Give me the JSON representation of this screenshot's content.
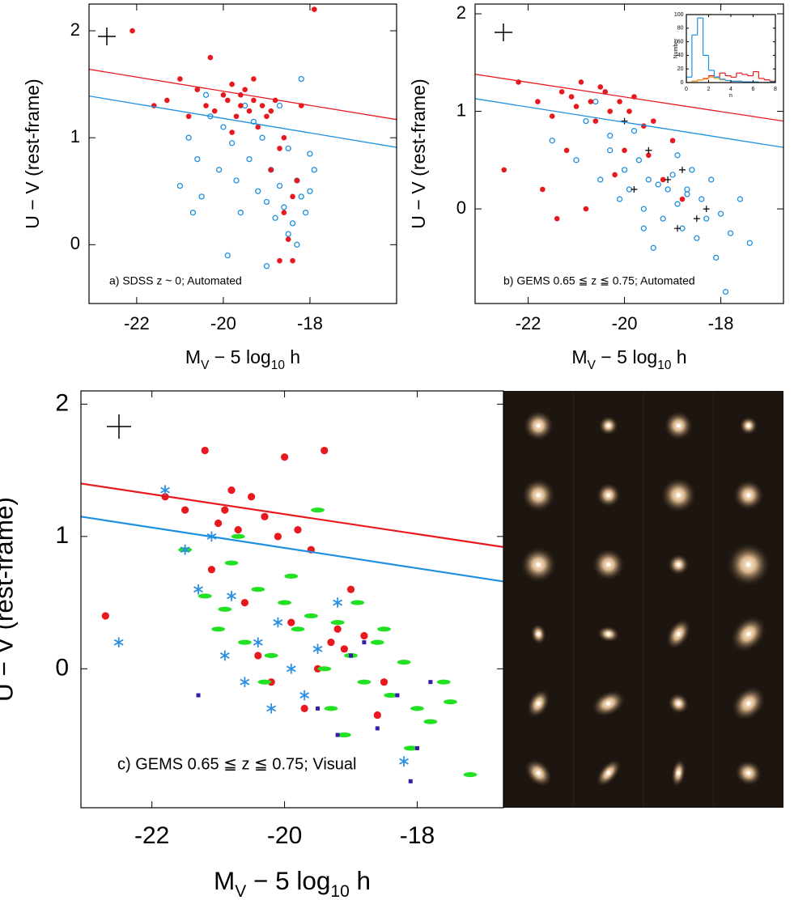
{
  "chart_data": [
    {
      "type": "scatter",
      "ylabel": "U − V (rest-frame)",
      "xlabel": [
        {
          "text": "M"
        },
        {
          "text": "V",
          "sub": true
        },
        {
          "text": " − 5 log"
        },
        {
          "text": "10",
          "sub": true
        },
        {
          "text": " h"
        }
      ],
      "annotation": "a) SDSS z ~ 0; Automated",
      "xlim": [
        -23.1,
        -16.0
      ],
      "ylim": [
        -0.55,
        2.25
      ],
      "xticks": [
        -22,
        -20,
        -18
      ],
      "yticks": [
        0,
        1,
        2
      ],
      "lines": [
        {
          "color": "#e8191e",
          "x": [
            -23.1,
            -16.0
          ],
          "values": [
            1.64,
            1.17
          ]
        },
        {
          "color": "#1e90e0",
          "x": [
            -23.1,
            -16.0
          ],
          "values": [
            1.39,
            0.91
          ]
        }
      ],
      "series": [
        {
          "color": "#1e90e0",
          "marker": "circle-open",
          "x": [
            -21.0,
            -20.8,
            -20.6,
            -20.5,
            -20.3,
            -20.1,
            -20.0,
            -19.8,
            -19.7,
            -19.5,
            -19.4,
            -19.2,
            -19.1,
            -19.0,
            -18.9,
            -18.8,
            -18.7,
            -18.6,
            -18.5,
            -18.4,
            -18.3,
            -18.2,
            -18.1,
            -18.0,
            -17.9,
            -18.3,
            -18.7,
            -19.3,
            -19.9,
            -20.4,
            -18.5,
            -18.2,
            -19.6,
            -18.0,
            -19.0,
            -20.7
          ],
          "values": [
            0.55,
            1.0,
            0.8,
            0.45,
            1.2,
            0.7,
            1.1,
            0.95,
            0.6,
            1.3,
            0.8,
            0.5,
            1.0,
            0.4,
            0.7,
            0.25,
            0.55,
            0.35,
            0.9,
            0.2,
            0.6,
            0.45,
            0.3,
            0.5,
            0.7,
            0.0,
            1.3,
            1.15,
            -0.1,
            1.4,
            0.1,
            1.55,
            0.3,
            0.85,
            -0.2,
            0.3
          ]
        },
        {
          "color": "#e8191e",
          "marker": "circle-filled",
          "x": [
            -22.1,
            -21.6,
            -21.3,
            -21.0,
            -20.8,
            -20.6,
            -20.4,
            -20.2,
            -20.0,
            -19.9,
            -19.8,
            -19.7,
            -19.6,
            -19.5,
            -19.4,
            -19.3,
            -19.2,
            -19.1,
            -19.0,
            -18.9,
            -18.8,
            -18.7,
            -18.6,
            -18.5,
            -18.4,
            -18.3,
            -18.2,
            -18.6,
            -18.9,
            -19.3,
            -19.8,
            -20.3,
            -18.7,
            -18.4,
            -19.6,
            -17.9
          ],
          "values": [
            2.0,
            1.3,
            1.35,
            1.55,
            1.2,
            1.45,
            1.3,
            1.25,
            1.4,
            1.35,
            1.5,
            1.2,
            1.3,
            1.45,
            1.25,
            1.35,
            1.1,
            1.3,
            1.2,
            1.25,
            1.35,
            0.9,
            1.0,
            0.05,
            -0.15,
            0.6,
            1.3,
            0.3,
            0.7,
            1.55,
            1.05,
            1.75,
            -0.15,
            0.45,
            1.4,
            2.2
          ]
        }
      ]
    },
    {
      "type": "scatter",
      "ylabel": "U − V (rest-frame)",
      "xlabel": [
        {
          "text": "M"
        },
        {
          "text": "V",
          "sub": true
        },
        {
          "text": " − 5 log"
        },
        {
          "text": "10",
          "sub": true
        },
        {
          "text": " h"
        }
      ],
      "annotation": "b) GEMS 0.65 ≦ z ≦ 0.75; Automated",
      "xlim": [
        -23.1,
        -16.7
      ],
      "ylim": [
        -0.97,
        2.1
      ],
      "xticks": [
        -22,
        -20,
        -18
      ],
      "yticks": [
        0,
        1,
        2
      ],
      "lines": [
        {
          "color": "#e8191e",
          "x": [
            -23.1,
            -16.7
          ],
          "values": [
            1.38,
            0.9
          ]
        },
        {
          "color": "#1e90e0",
          "x": [
            -23.1,
            -16.7
          ],
          "values": [
            1.13,
            0.63
          ]
        }
      ],
      "series": [
        {
          "color": "#1e90e0",
          "marker": "circle-open",
          "x": [
            -21.5,
            -21.0,
            -20.8,
            -20.5,
            -20.3,
            -20.1,
            -20.0,
            -19.9,
            -19.7,
            -19.6,
            -19.5,
            -19.3,
            -19.2,
            -19.1,
            -19.0,
            -18.9,
            -18.8,
            -18.7,
            -18.6,
            -18.5,
            -18.4,
            -18.3,
            -18.2,
            -18.0,
            -17.8,
            -17.6,
            -17.4,
            -19.8,
            -19.4,
            -20.6,
            -18.9,
            -18.1,
            -19.6,
            -20.3,
            -18.7,
            -17.9
          ],
          "values": [
            0.7,
            0.5,
            0.9,
            0.3,
            0.6,
            0.1,
            0.4,
            0.2,
            0.5,
            0.0,
            0.3,
            0.25,
            -0.1,
            0.2,
            0.35,
            0.05,
            -0.2,
            0.15,
            0.4,
            -0.3,
            0.1,
            -0.1,
            0.3,
            -0.05,
            -0.25,
            0.1,
            -0.35,
            0.8,
            -0.4,
            1.1,
            0.55,
            -0.5,
            -0.2,
            0.75,
            0.2,
            -0.85
          ]
        },
        {
          "color": "#e8191e",
          "marker": "circle-filled",
          "x": [
            -22.5,
            -22.2,
            -21.8,
            -21.5,
            -21.3,
            -21.1,
            -21.0,
            -20.9,
            -20.7,
            -20.6,
            -20.4,
            -20.3,
            -20.1,
            -20.0,
            -19.8,
            -19.6,
            -19.4,
            -19.2,
            -19.0,
            -18.8,
            -21.7,
            -21.2,
            -20.8,
            -20.2,
            -19.9,
            -20.5,
            -21.4,
            -19.5
          ],
          "values": [
            0.4,
            1.3,
            1.1,
            0.95,
            1.2,
            1.15,
            1.05,
            1.3,
            1.1,
            0.9,
            1.2,
            1.0,
            1.1,
            0.6,
            1.15,
            0.85,
            0.9,
            0.3,
            0.7,
            0.1,
            0.2,
            0.6,
            0.0,
            0.35,
            1.0,
            1.25,
            -0.1,
            0.55
          ]
        },
        {
          "color": "#000000",
          "marker": "plus",
          "x": [
            -20.0,
            -19.5,
            -19.1,
            -18.8,
            -18.5,
            -19.8,
            -18.9,
            -18.3
          ],
          "values": [
            0.9,
            0.6,
            0.3,
            0.4,
            -0.1,
            0.2,
            -0.2,
            0.0
          ]
        }
      ]
    },
    {
      "type": "histogram",
      "xlabel": "n",
      "ylabel": "Number",
      "xlim": [
        0,
        8
      ],
      "ylim": [
        0,
        100
      ],
      "xticks": [
        0,
        2,
        4,
        6,
        8
      ],
      "yticks": [
        0,
        20,
        40,
        60,
        80,
        100
      ],
      "bins": [
        0,
        0.5,
        1,
        1.5,
        2,
        2.5,
        3,
        3.5,
        4,
        4.5,
        5,
        5.5,
        6,
        6.5,
        7,
        7.5,
        8
      ],
      "series": [
        {
          "color": "#e8191e",
          "values": [
            0,
            2,
            4,
            6,
            10,
            8,
            14,
            10,
            8,
            14,
            12,
            10,
            16,
            6,
            4,
            2
          ]
        },
        {
          "color": "#f0a020",
          "values": [
            0,
            2,
            4,
            5,
            8,
            6,
            4,
            3,
            2,
            2,
            1,
            1,
            0,
            0,
            0,
            0
          ]
        },
        {
          "color": "#1e90e0",
          "values": [
            8,
            70,
            95,
            40,
            18,
            8,
            5,
            3,
            2,
            2,
            1,
            1,
            1,
            0,
            0,
            1
          ]
        }
      ]
    },
    {
      "type": "scatter",
      "ylabel": "U − V (rest-frame)",
      "xlabel": [
        {
          "text": "M"
        },
        {
          "text": "V",
          "sub": true
        },
        {
          "text": " − 5 log"
        },
        {
          "text": "10",
          "sub": true
        },
        {
          "text": " h"
        }
      ],
      "annotation": "c) GEMS 0.65 ≦ z ≦ 0.75; Visual",
      "xlim": [
        -23.07,
        -16.7
      ],
      "ylim": [
        -1.05,
        2.1
      ],
      "xticks": [
        -22,
        -20,
        -18
      ],
      "yticks": [
        0,
        1,
        2
      ],
      "lines": [
        {
          "color": "#e8191e",
          "x": [
            -23.07,
            -16.7
          ],
          "values": [
            1.4,
            0.92
          ]
        },
        {
          "color": "#1e90e0",
          "x": [
            -23.07,
            -16.7
          ],
          "values": [
            1.15,
            0.66
          ]
        }
      ],
      "series": [
        {
          "color": "#e8191e",
          "marker": "circle-filled",
          "x": [
            -22.7,
            -21.8,
            -21.5,
            -21.2,
            -21.0,
            -20.9,
            -20.7,
            -20.5,
            -20.3,
            -20.1,
            -20.0,
            -19.8,
            -19.6,
            -19.4,
            -19.2,
            -19.0,
            -18.8,
            -20.6,
            -20.2,
            -19.5,
            -19.9,
            -18.6,
            -21.1,
            -20.4,
            -19.7,
            -19.3,
            -18.5,
            -20.8,
            -19.1
          ],
          "values": [
            0.4,
            1.3,
            1.2,
            1.65,
            1.1,
            1.2,
            1.05,
            1.3,
            1.15,
            1.0,
            1.6,
            1.05,
            0.9,
            1.65,
            0.3,
            0.6,
            0.25,
            0.5,
            -0.1,
            0.0,
            0.35,
            -0.35,
            0.75,
            0.1,
            -0.3,
            0.2,
            -0.1,
            1.35,
            0.15
          ]
        },
        {
          "color": "#22e022",
          "marker": "ellipse",
          "x": [
            -21.5,
            -21.2,
            -21.0,
            -20.8,
            -20.6,
            -20.4,
            -20.2,
            -20.0,
            -19.8,
            -19.6,
            -19.4,
            -19.2,
            -19.0,
            -18.8,
            -18.6,
            -18.4,
            -18.2,
            -18.0,
            -17.8,
            -17.6,
            -17.2,
            -19.5,
            -19.9,
            -20.3,
            -18.9,
            -18.5,
            -19.1,
            -20.7,
            -19.3,
            -18.1,
            -17.5,
            -20.9
          ],
          "values": [
            0.9,
            0.55,
            0.3,
            0.8,
            0.2,
            0.6,
            0.1,
            0.5,
            0.3,
            0.4,
            0.0,
            0.35,
            0.1,
            -0.1,
            0.2,
            -0.2,
            0.05,
            -0.3,
            -0.4,
            -0.1,
            -0.8,
            1.2,
            0.7,
            -0.1,
            0.5,
            0.3,
            -0.5,
            1.0,
            -0.3,
            -0.6,
            -0.25,
            0.45
          ]
        },
        {
          "color": "#2a8fe0",
          "marker": "asterisk",
          "x": [
            -22.5,
            -21.8,
            -21.5,
            -21.1,
            -20.8,
            -20.6,
            -20.4,
            -20.1,
            -19.9,
            -19.7,
            -19.5,
            -21.3,
            -20.9,
            -20.2,
            -19.2,
            -18.2
          ],
          "values": [
            0.2,
            1.35,
            0.9,
            1.0,
            0.55,
            -0.1,
            0.2,
            0.35,
            0.0,
            -0.2,
            0.15,
            0.6,
            0.1,
            -0.3,
            0.5,
            -0.7
          ]
        },
        {
          "color": "#3a1aa8",
          "marker": "square",
          "x": [
            -21.3,
            -19.5,
            -19.0,
            -18.6,
            -18.3,
            -18.0,
            -17.8,
            -19.2,
            -18.8,
            -18.1
          ],
          "values": [
            -0.2,
            -0.3,
            0.1,
            -0.45,
            -0.2,
            -0.6,
            -0.1,
            -0.5,
            0.2,
            -0.85
          ]
        }
      ]
    }
  ]
}
